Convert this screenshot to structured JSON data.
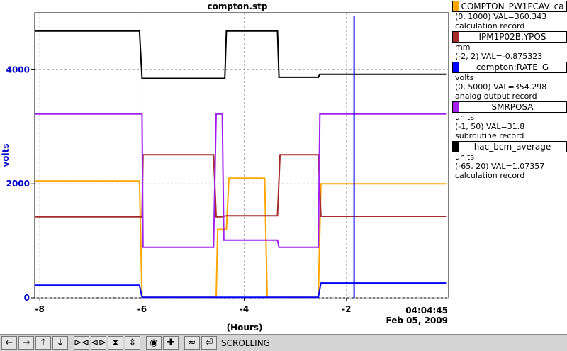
{
  "chart_data": {
    "type": "line",
    "title": "compton.stp",
    "xlabel": "(Hours)",
    "ylabel": "volts",
    "xlim": [
      -8.1,
      0
    ],
    "ylim": [
      0,
      5000
    ],
    "x_ticks": [
      -8,
      -6,
      -4,
      -2
    ],
    "x_tick_labels": [
      "-8",
      "-6",
      "-4",
      "-2"
    ],
    "y_ticks": [
      0,
      2000,
      4000
    ],
    "y_tick_labels": [
      "0",
      "2000",
      "4000"
    ],
    "end_time": "04:04:45",
    "end_date": "Feb 05, 2009",
    "grid": true,
    "series": [
      {
        "name": "COMPTON_PW1PCAV_ca",
        "color": "#ffa500",
        "units": "",
        "range": "(0, 1000)",
        "value_text": "VAL=360.343",
        "record": "calculation record",
        "x": [
          -8.1,
          -6.05,
          -6.0,
          -4.55,
          -4.52,
          -4.35,
          -4.3,
          -3.6,
          -3.55,
          -2.55,
          -2.5,
          -0.05
        ],
        "y": [
          2050,
          2050,
          10,
          10,
          1200,
          1200,
          2100,
          2100,
          10,
          10,
          2000,
          2000
        ]
      },
      {
        "name": "IPM1P02B.YPOS",
        "color": "#a52a2a",
        "units": "mm",
        "range": "(-2, 2)",
        "value_text": "VAL=-0.875323",
        "record": "",
        "x": [
          -8.1,
          -6.0,
          -5.98,
          -4.6,
          -4.55,
          -4.45,
          -4.35,
          -3.35,
          -3.3,
          -2.55,
          -2.5,
          -0.05
        ],
        "y": [
          1420,
          1420,
          2510,
          2510,
          1420,
          1420,
          1440,
          1440,
          2510,
          2510,
          1430,
          1430
        ]
      },
      {
        "name": "compton:RATE_G",
        "color": "#0000ff",
        "units": "volts",
        "range": "(0, 5000)",
        "value_text": "VAL=354.298",
        "record": "analog output record",
        "x": [
          -8.1,
          -6.05,
          -6.0,
          -2.55,
          -2.5,
          -0.05
        ],
        "y": [
          220,
          220,
          10,
          10,
          260,
          260
        ]
      },
      {
        "name": "SMRPOSA",
        "color": "#a020f0",
        "units": "units",
        "range": "(-1, 50)",
        "value_text": "VAL=31.8",
        "record": "subroutine record",
        "x": [
          -8.1,
          -6.0,
          -5.98,
          -4.6,
          -4.55,
          -4.43,
          -4.4,
          -3.35,
          -3.32,
          -2.55,
          -2.52,
          -0.05
        ],
        "y": [
          3225,
          3225,
          885,
          885,
          3225,
          3225,
          1010,
          1010,
          885,
          885,
          3225,
          3225
        ]
      },
      {
        "name": "hac_bcm_average",
        "color": "#000000",
        "units": "units",
        "range": "(-65, 20)",
        "value_text": "VAL=1.07357",
        "record": "calculation record",
        "x": [
          -8.1,
          -6.05,
          -6.0,
          -4.38,
          -4.35,
          -3.35,
          -3.32,
          -2.55,
          -2.52,
          -0.05
        ],
        "y": [
          4680,
          4680,
          3850,
          3850,
          4680,
          4680,
          3870,
          3870,
          3920,
          3920
        ]
      }
    ],
    "spike": {
      "x": -1.85,
      "y": 4950
    }
  },
  "toolbar": {
    "buttons": [
      "←",
      "→",
      "↑",
      "↓",
      "⊳⊲",
      "⊲⊳",
      "⧗",
      "⇕",
      "◉",
      "✚",
      "≈",
      "⏎"
    ],
    "status": "SCROLLING"
  }
}
